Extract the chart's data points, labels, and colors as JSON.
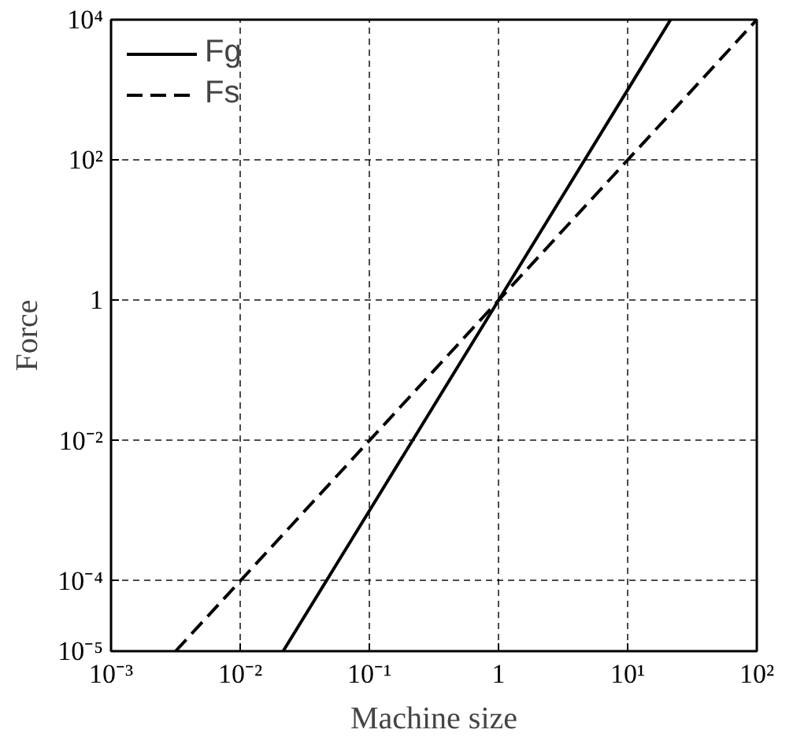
{
  "chart_data": {
    "type": "line",
    "xlabel": "Machine size",
    "ylabel": "Force",
    "log": "xy",
    "grid": true,
    "legend": "top left",
    "xlim": [
      0.001,
      100
    ],
    "ylim": [
      1e-05,
      10000
    ],
    "xticks": [
      {
        "value": 0.001,
        "label": "10⁻³"
      },
      {
        "value": 0.01,
        "label": "10⁻²"
      },
      {
        "value": 0.1,
        "label": "10⁻¹"
      },
      1,
      {
        "value": 10,
        "label": "10¹"
      },
      {
        "value": 100,
        "label": "10²"
      }
    ],
    "yticks": [
      {
        "value": 1e-05,
        "label": "10⁻⁵"
      },
      {
        "value": 0.0001,
        "label": "10⁻⁴"
      },
      {
        "value": 0.01,
        "label": "10⁻²"
      },
      1,
      {
        "value": 100,
        "label": "10²"
      },
      {
        "value": 10000,
        "label": "10⁴"
      }
    ],
    "series": [
      {
        "name": "Fg",
        "color": "#000000",
        "line_style": "solid",
        "x": [
          0.0215,
          0.1,
          1,
          10,
          21.5
        ],
        "values": [
          1e-05,
          0.001,
          1,
          1000,
          10000
        ]
      },
      {
        "name": "Fs",
        "color": "#000000",
        "line_style": "dashed",
        "x": [
          0.00316,
          0.01,
          0.1,
          1,
          10,
          100
        ],
        "values": [
          1e-05,
          0.0001,
          0.01,
          1,
          100,
          10000
        ]
      }
    ]
  }
}
